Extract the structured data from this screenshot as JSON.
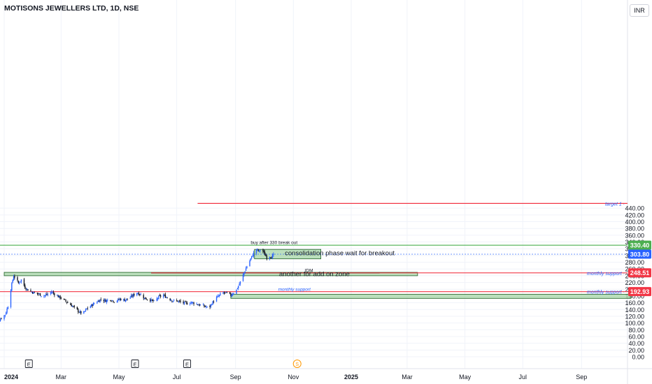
{
  "header": {
    "symbol_title": "MOTISONS JEWELLERS LTD, 1D, NSE",
    "currency": "INR"
  },
  "colors": {
    "up": "#2962ff",
    "down": "#131722",
    "support_line": "#f23645",
    "breakout_line": "#4caf50",
    "zone_fill": "#a5d6a7",
    "zone_border": "#1b5e20",
    "last_price": "#2962ff",
    "annotation_blue": "#2962ff",
    "event_orange": "#ff9800"
  },
  "chart_data": {
    "type": "candlestick",
    "title": "MOTISONS JEWELLERS LTD, 1D, NSE",
    "ylim": [
      0,
      460
    ],
    "yticks": [
      "0.00",
      "20.00",
      "40.00",
      "60.00",
      "80.00",
      "100.00",
      "120.00",
      "140.00",
      "160.00",
      "180.00",
      "200.00",
      "220.00",
      "240.00",
      "260.00",
      "280.00",
      "300.00",
      "320.00",
      "340.00",
      "360.00",
      "380.00",
      "400.00",
      "420.00",
      "440.00"
    ],
    "x_labels": [
      "2024",
      "Mar",
      "May",
      "Jul",
      "Sep",
      "Nov",
      "2025",
      "Mar",
      "May",
      "Jul",
      "Sep"
    ],
    "x_label_dates": [
      "2024-01-01",
      "2024-03-01",
      "2024-05-01",
      "2024-07-01",
      "2024-09-01",
      "2024-11-01",
      "2025-01-01",
      "2025-03-01",
      "2025-05-01",
      "2025-07-01",
      "2025-09-01"
    ],
    "x_range": [
      "2023-12-19",
      "2025-10-25"
    ],
    "price_path": [
      [
        "2023-12-19",
        105
      ],
      [
        "2023-12-21",
        90
      ],
      [
        "2023-12-24",
        98
      ],
      [
        "2023-12-28",
        112
      ],
      [
        "2024-01-02",
        125
      ],
      [
        "2024-01-05",
        150
      ],
      [
        "2024-01-07",
        185
      ],
      [
        "2024-01-09",
        215
      ],
      [
        "2024-01-11",
        240
      ],
      [
        "2024-01-13",
        232
      ],
      [
        "2024-01-16",
        218
      ],
      [
        "2024-01-19",
        228
      ],
      [
        "2024-01-23",
        205
      ],
      [
        "2024-01-27",
        196
      ],
      [
        "2024-02-01",
        190
      ],
      [
        "2024-02-06",
        186
      ],
      [
        "2024-02-11",
        180
      ],
      [
        "2024-02-16",
        185
      ],
      [
        "2024-02-20",
        192
      ],
      [
        "2024-02-25",
        182
      ],
      [
        "2024-03-02",
        172
      ],
      [
        "2024-03-07",
        162
      ],
      [
        "2024-03-12",
        152
      ],
      [
        "2024-03-16",
        143
      ],
      [
        "2024-03-20",
        133
      ],
      [
        "2024-03-24",
        127
      ],
      [
        "2024-03-28",
        142
      ],
      [
        "2024-04-02",
        152
      ],
      [
        "2024-04-07",
        162
      ],
      [
        "2024-04-12",
        170
      ],
      [
        "2024-04-17",
        166
      ],
      [
        "2024-04-22",
        170
      ],
      [
        "2024-04-27",
        163
      ],
      [
        "2024-05-02",
        171
      ],
      [
        "2024-05-07",
        168
      ],
      [
        "2024-05-12",
        174
      ],
      [
        "2024-05-16",
        182
      ],
      [
        "2024-05-20",
        190
      ],
      [
        "2024-05-24",
        184
      ],
      [
        "2024-05-28",
        173
      ],
      [
        "2024-06-02",
        170
      ],
      [
        "2024-06-07",
        163
      ],
      [
        "2024-06-12",
        177
      ],
      [
        "2024-06-17",
        182
      ],
      [
        "2024-06-22",
        173
      ],
      [
        "2024-06-27",
        166
      ],
      [
        "2024-07-02",
        165
      ],
      [
        "2024-07-07",
        160
      ],
      [
        "2024-07-12",
        158
      ],
      [
        "2024-07-17",
        161
      ],
      [
        "2024-07-22",
        156
      ],
      [
        "2024-07-27",
        152
      ],
      [
        "2024-08-01",
        148
      ],
      [
        "2024-08-04",
        144
      ],
      [
        "2024-08-07",
        158
      ],
      [
        "2024-08-11",
        172
      ],
      [
        "2024-08-15",
        182
      ],
      [
        "2024-08-19",
        190
      ],
      [
        "2024-08-23",
        188
      ],
      [
        "2024-08-27",
        182
      ],
      [
        "2024-08-30",
        190
      ],
      [
        "2024-09-02",
        198
      ],
      [
        "2024-09-05",
        215
      ],
      [
        "2024-09-08",
        235
      ],
      [
        "2024-09-11",
        255
      ],
      [
        "2024-09-14",
        275
      ],
      [
        "2024-09-17",
        290
      ],
      [
        "2024-09-20",
        306
      ],
      [
        "2024-09-23",
        318
      ],
      [
        "2024-09-26",
        312
      ],
      [
        "2024-09-28",
        322
      ],
      [
        "2024-10-01",
        307
      ],
      [
        "2024-10-03",
        298
      ],
      [
        "2024-10-05",
        288
      ],
      [
        "2024-10-07",
        298
      ],
      [
        "2024-10-09",
        296
      ],
      [
        "2024-10-12",
        304
      ]
    ],
    "horizontal_lines": [
      {
        "label": "target 1",
        "price": 454,
        "color": "#f23645",
        "from": "2024-07-23"
      },
      {
        "label": "",
        "price": 330.4,
        "color": "#4caf50",
        "from": "2023-12-19"
      },
      {
        "label": "monthly support",
        "price": 248.51,
        "color": "#f23645",
        "from": "2024-06-04"
      },
      {
        "label": "monthly support",
        "price": 192.93,
        "color": "#f23645",
        "from": "2023-12-19"
      },
      {
        "label": "",
        "price": 303.8,
        "color": "#2962ff",
        "from": "2023-12-19",
        "dotted": true
      }
    ],
    "zones": [
      {
        "from": "2024-09-21",
        "to": "2024-11-30",
        "top": 318,
        "bottom": 290
      },
      {
        "from": "2024-01-01",
        "to": "2025-03-12",
        "top": 250,
        "bottom": 240
      },
      {
        "from": "2024-08-27",
        "to": "2025-10-23",
        "top": 185,
        "bottom": 173
      }
    ],
    "price_labels": [
      {
        "value": "330.40",
        "price": 330.4,
        "color": "#4caf50"
      },
      {
        "value": "303.80",
        "price": 303.8,
        "color": "#2962ff"
      },
      {
        "value": "248.51",
        "price": 248.51,
        "color": "#f23645"
      },
      {
        "value": "192.93",
        "price": 192.93,
        "color": "#f23645"
      }
    ],
    "annotations": [
      {
        "text": "buy after 330 break out",
        "date": "2024-09-17",
        "price": 334,
        "color": "#131722"
      },
      {
        "text": "consolidation phase wait for breakout",
        "date": "2024-10-23",
        "price": 301,
        "color": "#131722",
        "big": true
      },
      {
        "text": "IDM",
        "date": "2024-11-13",
        "price": 251,
        "color": "#131722"
      },
      {
        "text": "another for add on zone",
        "date": "2024-10-17",
        "price": 239,
        "color": "#131722",
        "big": true
      },
      {
        "text": "monthly support",
        "date": "2024-10-16",
        "price": 195,
        "color": "#2962ff",
        "italic": true
      }
    ],
    "idm_line": {
      "from": "2024-06-04",
      "to": "2025-01-31",
      "price": 248
    },
    "events": [
      {
        "symbol": "E",
        "date": "2024-01-27"
      },
      {
        "symbol": "E",
        "date": "2024-05-18"
      },
      {
        "symbol": "E",
        "date": "2024-07-12"
      },
      {
        "symbol": "S",
        "date": "2024-11-05",
        "color": "#ff9800"
      }
    ]
  }
}
